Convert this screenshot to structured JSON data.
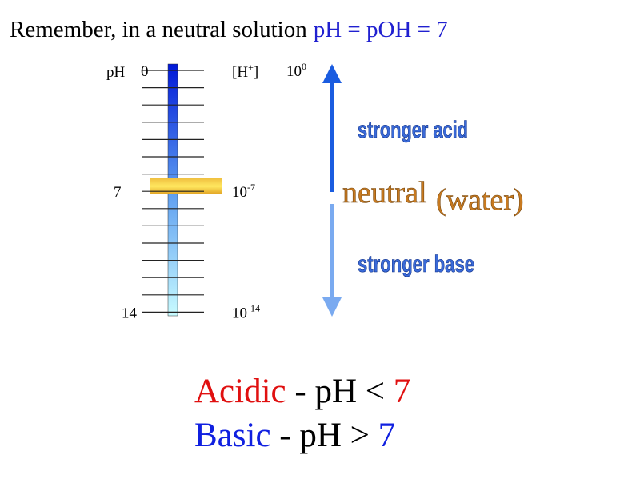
{
  "header": {
    "text": "Remember, in a neutral solution",
    "highlight": "pH = pOH = 7"
  },
  "scale": {
    "left_title": "pH",
    "right_title": {
      "base": "[H",
      "sup": "+",
      "end": "]"
    },
    "levels": [
      {
        "ph": "0",
        "conc": {
          "base": "10",
          "exp": "0"
        }
      },
      {
        "ph": "7",
        "conc": {
          "base": "10",
          "exp": "-7"
        }
      },
      {
        "ph": "14",
        "conc": {
          "base": "10",
          "exp": "-14"
        }
      }
    ]
  },
  "arrows": {
    "up": "stronger acid",
    "middle": "neutral",
    "middle_paren": "(water)",
    "down": "stronger base"
  },
  "rules": [
    {
      "term": "Acidic",
      "relation": " - pH < ",
      "value": "7"
    },
    {
      "term": "Basic",
      "relation": " - pH > ",
      "value": "7"
    }
  ]
}
